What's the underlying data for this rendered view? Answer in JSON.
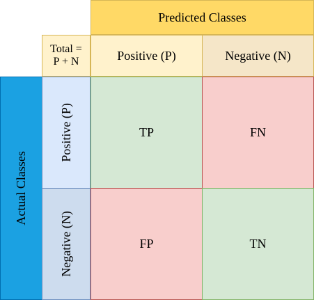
{
  "header": {
    "predicted_label": "Predicted Classes",
    "actual_label": "Actual Classes"
  },
  "total": {
    "line1": "Total =",
    "line2": "P + N"
  },
  "predicted": {
    "positive": "Positive (P)",
    "negative": "Negative (N)"
  },
  "actual": {
    "positive": "Positive (P)",
    "negative": "Negative (N)"
  },
  "matrix": {
    "tp": "TP",
    "fn": "FN",
    "fp": "FP",
    "tn": "TN"
  },
  "colors": {
    "predicted_header": "#ffd966",
    "actual_header": "#1ba1e2",
    "correct_cell": "#d5e8d4",
    "error_cell": "#f8cecc",
    "actual_class_cell": "#dae8fc"
  }
}
